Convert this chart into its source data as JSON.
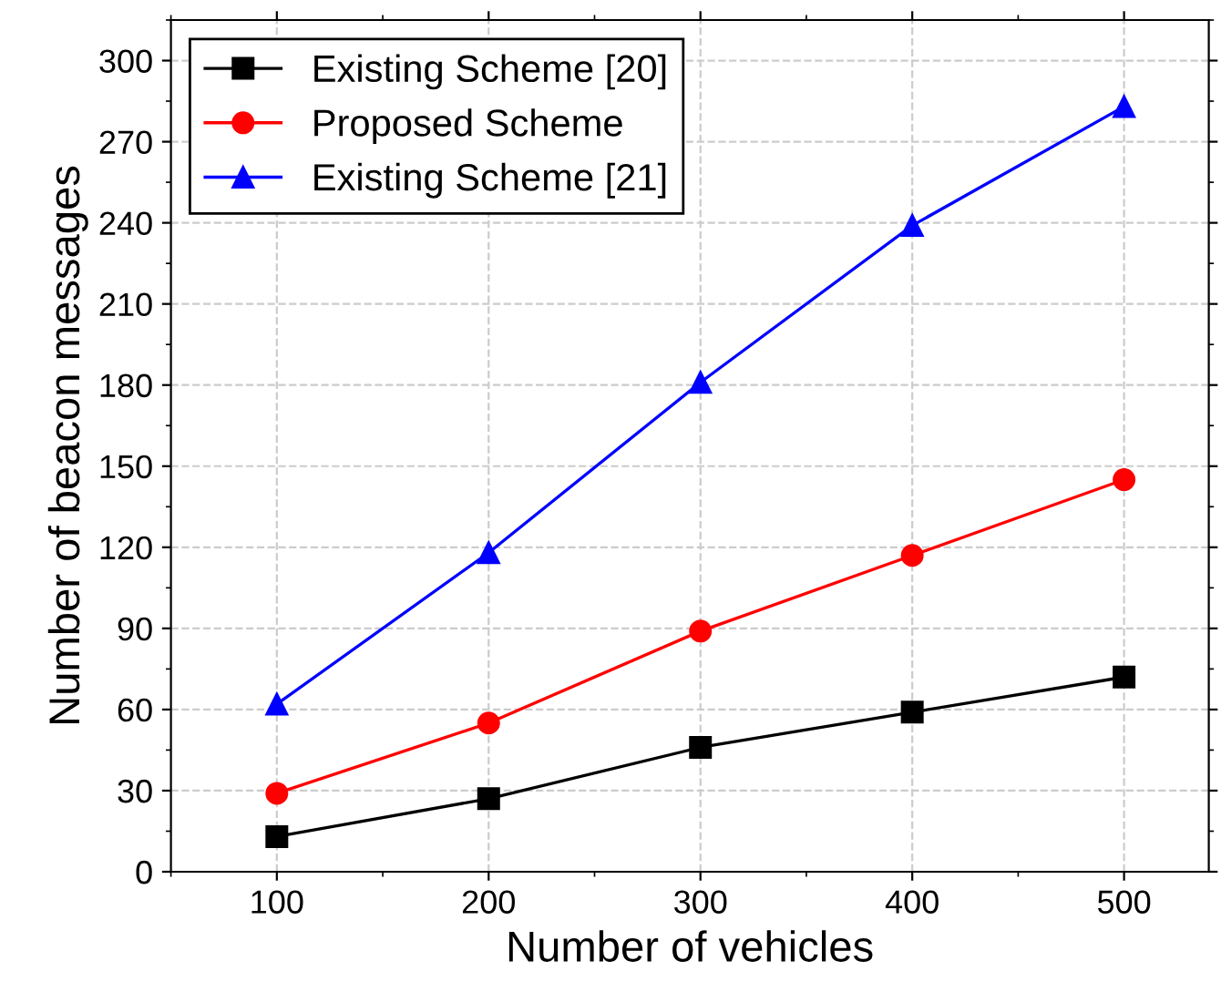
{
  "chart_data": {
    "type": "line",
    "xlabel": "Number of vehicles",
    "ylabel": "Number of beacon messages",
    "x": [
      100,
      200,
      300,
      400,
      500
    ],
    "series": [
      {
        "name": "Existing Scheme [20]",
        "color": "#000000",
        "marker": "square",
        "values": [
          13,
          27,
          46,
          59,
          72
        ]
      },
      {
        "name": "Proposed Scheme",
        "color": "#ff0000",
        "marker": "circle",
        "values": [
          29,
          55,
          89,
          117,
          145
        ]
      },
      {
        "name": "Existing Scheme [21]",
        "color": "#0000ff",
        "marker": "triangle",
        "values": [
          62,
          118,
          181,
          239,
          283
        ]
      }
    ],
    "xlim": [
      50,
      540
    ],
    "ylim": [
      0,
      315
    ],
    "xticks": [
      100,
      200,
      300,
      400,
      500
    ],
    "yticks": [
      0,
      30,
      60,
      90,
      120,
      150,
      180,
      210,
      240,
      270,
      300
    ],
    "grid": true,
    "legend": "top left",
    "line_style": "solid"
  }
}
